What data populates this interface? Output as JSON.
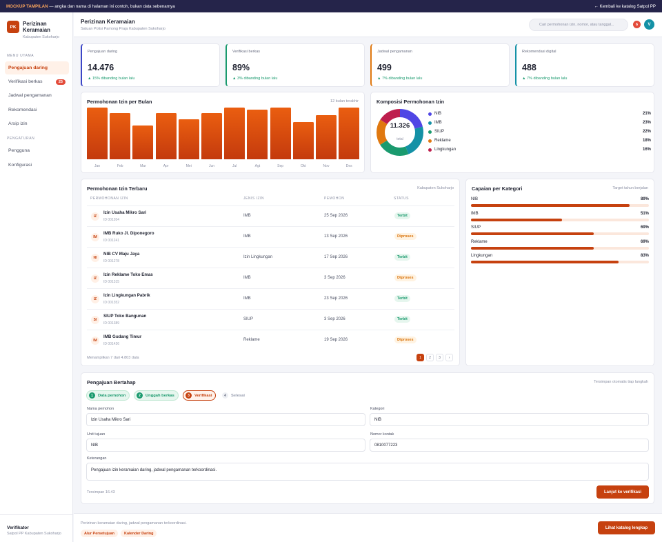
{
  "banner": {
    "tag": "MOCKUP TAMPILAN",
    "text": "— angka dan nama di halaman ini contoh, bukan data sebenarnya",
    "back_link": "← Kembali ke katalog Satpol PP"
  },
  "app": {
    "logo": "PK",
    "title": "Perizinan Keramaian",
    "subtitle": "Kabupaten Sukoharjo"
  },
  "sidebar": {
    "section_main": "MENU UTAMA",
    "items_main": [
      {
        "label": "Pengajuan daring",
        "active": true
      },
      {
        "label": "Verifikasi berkas",
        "badge": "25"
      },
      {
        "label": "Jadwal pengamanan"
      },
      {
        "label": "Rekomendasi"
      },
      {
        "label": "Arsip izin"
      }
    ],
    "section_settings": "PENGATURAN",
    "items_settings": [
      {
        "label": "Pengguna"
      },
      {
        "label": "Konfigurasi"
      }
    ],
    "user_role": "Verifikator",
    "user_org": "Satpol PP Kabupaten Sukoharjo"
  },
  "header": {
    "title": "Perizinan Keramaian",
    "subtitle": "Satuan Polisi Pamong Praja Kabupaten Sukoharjo",
    "search_placeholder": "Cari permohonan izin, nomor, atau tanggal...",
    "notif_count": "6",
    "avatar": "V"
  },
  "stats": [
    {
      "label": "Pengajuan daring",
      "value": "14.476",
      "change": "▲ 15% dibanding bulan lalu",
      "accent": "#3b45c6"
    },
    {
      "label": "Verifikasi berkas",
      "value": "89%",
      "change": "▲ 3% dibanding bulan lalu",
      "accent": "#1a9a6e"
    },
    {
      "label": "Jadwal pengamanan",
      "value": "499",
      "change": "▲ 7% dibanding bulan lalu",
      "accent": "#e0780f"
    },
    {
      "label": "Rekomendasi digital",
      "value": "488",
      "change": "▲ 7% dibanding bulan lalu",
      "accent": "#1491a6"
    }
  ],
  "chart_data": [
    {
      "type": "bar",
      "title": "Permohonan Izin per Bulan",
      "note": "12 bulan terakhir",
      "categories": [
        "Jan",
        "Feb",
        "Mar",
        "Apr",
        "Mei",
        "Jun",
        "Jul",
        "Agt",
        "Sep",
        "Okt",
        "Nov",
        "Des"
      ],
      "values": [
        100,
        89,
        65,
        90,
        78,
        89,
        100,
        96,
        100,
        72,
        86,
        100
      ],
      "ylim": [
        0,
        100
      ],
      "color": "#d9480f"
    },
    {
      "type": "pie",
      "title": "Komposisi Permohonan Izin",
      "center_value": "11.326",
      "center_label": "total",
      "categories": [
        "NIB",
        "IMB",
        "SIUP",
        "Reklame",
        "Lingkungan"
      ],
      "values": [
        21,
        23,
        22,
        18,
        16
      ],
      "labels": [
        "21%",
        "23%",
        "22%",
        "18%",
        "16%"
      ],
      "colors": [
        "#4f46e5",
        "#1491a6",
        "#1a9a6e",
        "#e0780f",
        "#be1e4d"
      ]
    }
  ],
  "table": {
    "title": "Permohonan Izin Terbaru",
    "note": "Kabupaten Sukoharjo",
    "columns": [
      "PERMOHONAN IZIN",
      "JENIS IZIN",
      "PEMOHON",
      "STATUS"
    ],
    "rows": [
      {
        "icon": "IZ",
        "name": "Izin Usaha Mikro Sari",
        "id": "ID 001204",
        "jenis": "IMB",
        "tanggal": "25 Sep 2026",
        "status": "Terbit"
      },
      {
        "icon": "IM",
        "name": "IMB Ruko Jl. Diponegoro",
        "id": "ID 001241",
        "jenis": "IMB",
        "tanggal": "13 Sep 2026",
        "status": "Diproses"
      },
      {
        "icon": "NI",
        "name": "NIB CV Maju Jaya",
        "id": "ID 001278",
        "jenis": "Izin Lingkungan",
        "tanggal": "17 Sep 2026",
        "status": "Terbit"
      },
      {
        "icon": "IZ",
        "name": "Izin Reklame Toko Emas",
        "id": "ID 001315",
        "jenis": "IMB",
        "tanggal": "3 Sep 2026",
        "status": "Diproses"
      },
      {
        "icon": "IZ",
        "name": "Izin Lingkungan Pabrik",
        "id": "ID 001352",
        "jenis": "IMB",
        "tanggal": "23 Sep 2026",
        "status": "Terbit"
      },
      {
        "icon": "SI",
        "name": "SIUP Toko Bangunan",
        "id": "ID 001389",
        "jenis": "SIUP",
        "tanggal": "3 Sep 2026",
        "status": "Terbit"
      },
      {
        "icon": "IM",
        "name": "IMB Gudang Timur",
        "id": "ID 001426",
        "jenis": "Reklame",
        "tanggal": "19 Sep 2026",
        "status": "Diproses"
      }
    ],
    "footer": "Menampilkan 7 dari 4.803 data",
    "pages": [
      "1",
      "2",
      "3",
      "›"
    ]
  },
  "progress": {
    "title": "Capaian per Kategori",
    "note": "Target tahun berjalan",
    "items": [
      {
        "label": "NIB",
        "pct": "89%",
        "value": 89
      },
      {
        "label": "IMB",
        "pct": "51%",
        "value": 51
      },
      {
        "label": "SIUP",
        "pct": "69%",
        "value": 69
      },
      {
        "label": "Reklame",
        "pct": "69%",
        "value": 69
      },
      {
        "label": "Lingkungan",
        "pct": "83%",
        "value": 83
      }
    ]
  },
  "form": {
    "title": "Pengajuan Bertahap",
    "note": "Tersimpan otomatis tiap langkah",
    "steps": [
      {
        "num": "1",
        "label": "Data pemohon",
        "state": "done"
      },
      {
        "num": "2",
        "label": "Unggah berkas",
        "state": "done"
      },
      {
        "num": "3",
        "label": "Verifikasi",
        "state": "current"
      },
      {
        "num": "4",
        "label": "Selesai",
        "state": "todo"
      }
    ],
    "nama_label": "Nama pemohon",
    "nama_value": "Izin Usaha Mikro Sari",
    "kategori_label": "Kategori",
    "kategori_value": "NIB",
    "unit_label": "Unit tujuan",
    "unit_value": "NIB",
    "kontak_label": "Nomor kontak",
    "kontak_value": "0810077223",
    "ket_label": "Keterangan",
    "ket_value": "Pengajuan izin keramaian daring, jadwal pengamanan terkoordinasi.",
    "saved": "Tersimpan 16.43",
    "submit": "Lanjut ke verifikasi"
  },
  "footer": {
    "text": "Perizinan keramaian daring, jadwal pengamanan terkoordinasi.",
    "chips": [
      "Alur Persetujuan",
      "Kalender Daring"
    ],
    "cta": "Lihat katalog lengkap"
  }
}
